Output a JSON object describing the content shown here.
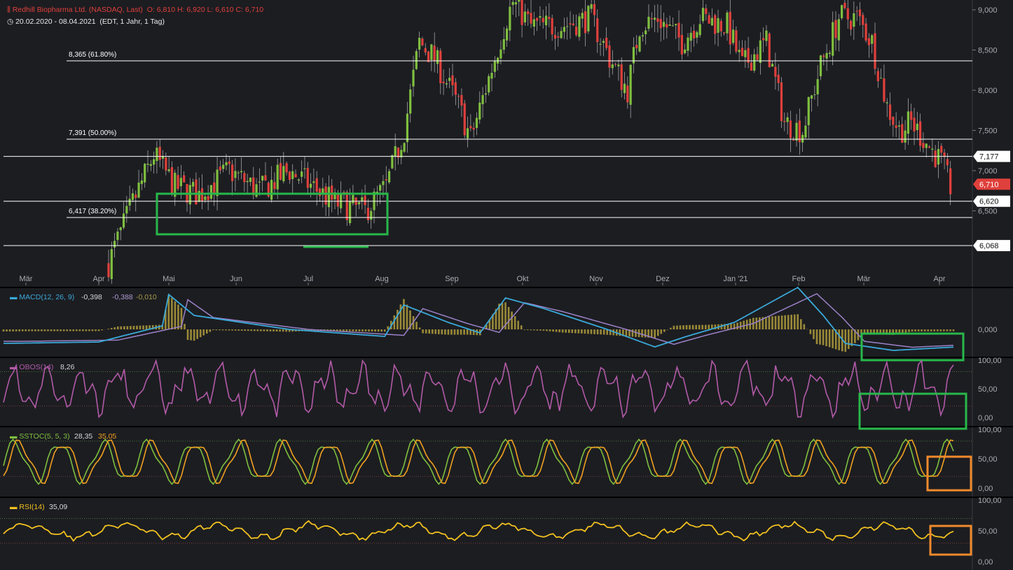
{
  "header": {
    "instrument": "Redhill Biopharma Ltd. (NASDAQ, Last)",
    "ohlc": "O: 6,810  H: 6,920  L: 6,610  C: 6,710",
    "range": "20.02.2020 - 08.04.2021",
    "settings": "(EDT, 1 Jahr, 1 Tag)"
  },
  "colors": {
    "background": "#1c1d21",
    "up": "#7fbf3f",
    "down": "#e0403c",
    "grid_line": "#ffffff",
    "green_box": "#27b84a",
    "orange_box": "#f08a2c",
    "macd": "#3aa9d9",
    "macd_signal": "#9b82c8",
    "histogram": "#9a8a38",
    "obos": "#b25aa8",
    "sstoc_k": "#7fbf3f",
    "sstoc_d": "#f0a020",
    "rsi": "#f0c020"
  },
  "chart_data": [
    {
      "type": "candlestick",
      "title": "Redhill Biopharma Ltd. (NASDAQ, Last)",
      "x_ticks": [
        "Mär",
        "Apr",
        "Mai",
        "Jun",
        "Jul",
        "Aug",
        "Sep",
        "Okt",
        "Nov",
        "Dez",
        "Jan '21",
        "Feb",
        "Mär",
        "Apr"
      ],
      "y_ticks": [
        "9,000",
        "8,500",
        "8,000",
        "7,500",
        "7,000",
        "6,500"
      ],
      "ylim": [
        5.6,
        9.1
      ],
      "horizontal_levels": [
        {
          "label": "8,365 (61.80%)",
          "value": 8.365
        },
        {
          "label": "7,391 (50.00%)",
          "value": 7.391
        },
        {
          "label": "6,417 (38.20%)",
          "value": 6.417
        },
        {
          "label": "",
          "value": 7.177
        },
        {
          "label": "",
          "value": 6.62
        },
        {
          "label": "",
          "value": 6.068
        }
      ],
      "price_tags": [
        {
          "label": "7,177",
          "value": 7.177,
          "style": "white"
        },
        {
          "label": "6,710",
          "value": 6.71,
          "style": "red"
        },
        {
          "label": "6,620",
          "value": 6.62,
          "style": "white"
        },
        {
          "label": "6,068",
          "value": 6.068,
          "style": "white"
        }
      ],
      "last_close": 6.71
    },
    {
      "type": "line",
      "title": "MACD(12, 26, 9)",
      "values_text": [
        "-0,398",
        "-0,388",
        "-0,010"
      ],
      "y_ticks": [
        "0,000"
      ],
      "series": [
        {
          "name": "MACD"
        },
        {
          "name": "Signal"
        },
        {
          "name": "Histogram"
        }
      ]
    },
    {
      "type": "line",
      "title": "OBOS(14)",
      "values_text": [
        "8,26"
      ],
      "y_ticks": [
        "100,00",
        "50,00",
        "0,00"
      ],
      "ylim": [
        0,
        100
      ],
      "bands": [
        80,
        20
      ]
    },
    {
      "type": "line",
      "title": "SSTOC(5, 5, 3)",
      "values_text": [
        "28,35",
        "35,05"
      ],
      "y_ticks": [
        "100,00",
        "50,00",
        "0,00"
      ],
      "ylim": [
        0,
        100
      ],
      "bands": [
        80,
        20
      ]
    },
    {
      "type": "line",
      "title": "RSI(14)",
      "values_text": [
        "35,09"
      ],
      "y_ticks": [
        "100,00",
        "50,00",
        "0,00"
      ],
      "ylim": [
        0,
        100
      ],
      "bands": [
        70,
        30
      ]
    }
  ]
}
